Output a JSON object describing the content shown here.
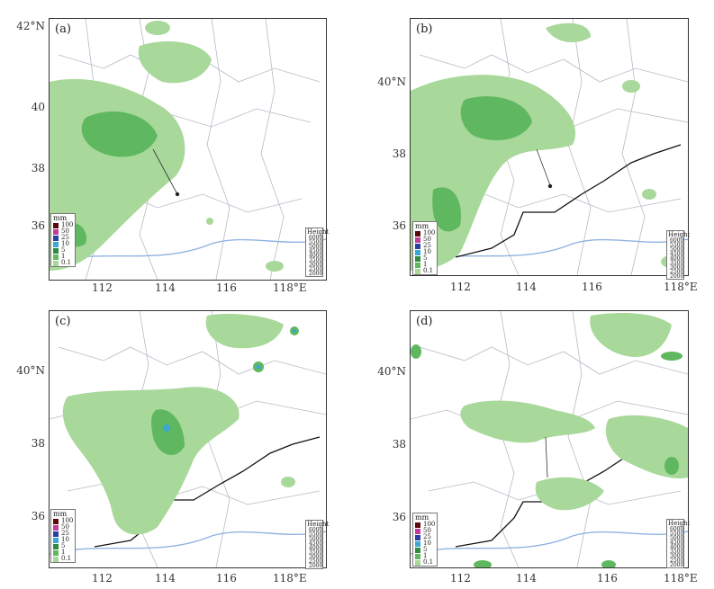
{
  "panels": [
    {
      "label": "(a)",
      "lat_ticks": [
        "42°N",
        "40",
        "38",
        "36"
      ],
      "lon_ticks": [
        "112",
        "114",
        "116",
        "118°E"
      ]
    },
    {
      "label": "(b)",
      "lat_ticks": [
        "40°N",
        "38",
        "36"
      ],
      "lon_ticks": [
        "112",
        "114",
        "116",
        "118°E"
      ]
    },
    {
      "label": "(c)",
      "lat_ticks": [
        "40°N",
        "38",
        "36"
      ],
      "lon_ticks": [
        "112",
        "114",
        "116",
        "118°E"
      ]
    },
    {
      "label": "(d)",
      "lat_ticks": [
        "40°N",
        "38",
        "36"
      ],
      "lon_ticks": [
        "112",
        "114",
        "116",
        "118°E"
      ]
    }
  ],
  "precip_legend": {
    "unit": "mm",
    "levels": [
      {
        "label": "100",
        "color": "#5a0a0a"
      },
      {
        "label": "50",
        "color": "#c23b9a"
      },
      {
        "label": "25",
        "color": "#2a3fa6"
      },
      {
        "label": "10",
        "color": "#3aa7d6"
      },
      {
        "label": "5",
        "color": "#2e8b3f"
      },
      {
        "label": "1",
        "color": "#5fb85f"
      },
      {
        "label": "0.1",
        "color": "#a8d89a"
      }
    ]
  },
  "height_legend": {
    "title": "Height",
    "levels": [
      {
        "label": "6000",
        "color": "#e0282a"
      },
      {
        "label": "5500",
        "color": "#6a2dc8"
      },
      {
        "label": "5000",
        "color": "#2b48d6"
      },
      {
        "label": "4500",
        "color": "#3fa0e0"
      },
      {
        "label": "4000",
        "color": "#3f9a3f"
      },
      {
        "label": "3500",
        "color": "#9bc53d"
      },
      {
        "label": "3000",
        "color": "#e0a020"
      },
      {
        "label": "2500",
        "color": "#e06020"
      },
      {
        "label": "2000",
        "color": "#c01010"
      }
    ]
  },
  "colors": {
    "light_green": "#a8d89a",
    "mid_green": "#5fb85f",
    "dark_green": "#2e8b3f",
    "border": "#b9b9c8",
    "river": "#8fb4e0",
    "boundary": "#111111"
  }
}
